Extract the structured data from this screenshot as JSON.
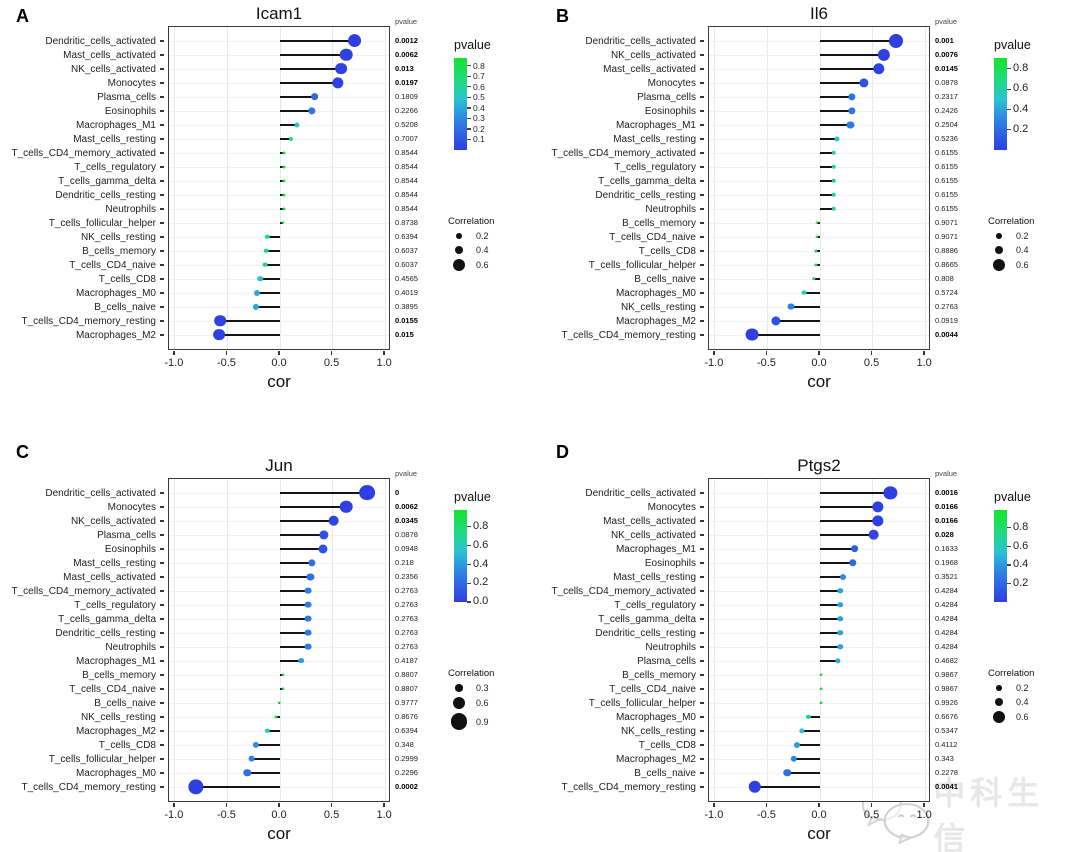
{
  "watermark": {
    "text": "中科生信",
    "icon": "wechat-icon"
  },
  "colors": {
    "stem": "#141414",
    "box_border": "#3a3a3a",
    "gradient_stops": [
      {
        "t": 0.0,
        "rgb": [
          47,
          62,
          224
        ]
      },
      {
        "t": 0.3,
        "rgb": [
          45,
          125,
          230
        ]
      },
      {
        "t": 0.55,
        "rgb": [
          42,
          195,
          210
        ]
      },
      {
        "t": 0.75,
        "rgb": [
          34,
          217,
          130
        ]
      },
      {
        "t": 1.0,
        "rgb": [
          20,
          228,
          45
        ]
      }
    ],
    "gradient_low_p": "blue",
    "gradient_high_p": "green"
  },
  "chart_data": [
    {
      "panel": "A",
      "type": "lollipop",
      "title": "Icam1",
      "xlabel": "cor",
      "xlim": [
        -1.0,
        1.0
      ],
      "xticks": [
        "-1.0",
        "-0.5",
        "0.0",
        "0.5",
        "1.0"
      ],
      "pvalue_col_header": "pvalue",
      "legend": {
        "pvalue_title": "pvalue",
        "pvalue_ticks": [
          0.8,
          0.7,
          0.6,
          0.5,
          0.4,
          0.3,
          0.2,
          0.1
        ],
        "correlation_title": "Correlation",
        "correlation_sizes": [
          0.2,
          0.4,
          0.6
        ]
      },
      "rows": [
        {
          "cell": "Dendritic_cells_activated",
          "cor": 0.71,
          "pvalue": "0.0012",
          "significant": true
        },
        {
          "cell": "Mast_cells_activated",
          "cor": 0.63,
          "pvalue": "0.0062",
          "significant": true
        },
        {
          "cell": "NK_cells_activated",
          "cor": 0.58,
          "pvalue": "0.013",
          "significant": true
        },
        {
          "cell": "Monocytes",
          "cor": 0.55,
          "pvalue": "0.0197",
          "significant": true
        },
        {
          "cell": "Plasma_cells",
          "cor": 0.33,
          "pvalue": "0.1809",
          "significant": false
        },
        {
          "cell": "Eosinophils",
          "cor": 0.3,
          "pvalue": "0.2266",
          "significant": false
        },
        {
          "cell": "Macrophages_M1",
          "cor": 0.16,
          "pvalue": "0.5208",
          "significant": false
        },
        {
          "cell": "Mast_cells_resting",
          "cor": 0.1,
          "pvalue": "0.7007",
          "significant": false
        },
        {
          "cell": "T_cells_CD4_memory_activated",
          "cor": 0.04,
          "pvalue": "0.8544",
          "significant": false
        },
        {
          "cell": "T_cells_regulatory",
          "cor": 0.04,
          "pvalue": "0.8544",
          "significant": false
        },
        {
          "cell": "T_cells_gamma_delta",
          "cor": 0.04,
          "pvalue": "0.8544",
          "significant": false
        },
        {
          "cell": "Dendritic_cells_resting",
          "cor": 0.04,
          "pvalue": "0.8544",
          "significant": false
        },
        {
          "cell": "Neutrophils",
          "cor": 0.04,
          "pvalue": "0.8544",
          "significant": false
        },
        {
          "cell": "T_cells_follicular_helper",
          "cor": 0.03,
          "pvalue": "0.8738",
          "significant": false
        },
        {
          "cell": "NK_cells_resting",
          "cor": -0.12,
          "pvalue": "0.6394",
          "significant": false
        },
        {
          "cell": "B_cells_memory",
          "cor": -0.13,
          "pvalue": "0.6037",
          "significant": false
        },
        {
          "cell": "T_cells_CD4_naive",
          "cor": -0.14,
          "pvalue": "0.6037",
          "significant": false
        },
        {
          "cell": "T_cells_CD8",
          "cor": -0.19,
          "pvalue": "0.4565",
          "significant": false
        },
        {
          "cell": "Macrophages_M0",
          "cor": -0.22,
          "pvalue": "0.4019",
          "significant": false
        },
        {
          "cell": "B_cells_naive",
          "cor": -0.23,
          "pvalue": "0.3895",
          "significant": false
        },
        {
          "cell": "T_cells_CD4_memory_resting",
          "cor": -0.57,
          "pvalue": "0.0155",
          "significant": true
        },
        {
          "cell": "Macrophages_M2",
          "cor": -0.58,
          "pvalue": "0.015",
          "significant": true
        }
      ]
    },
    {
      "panel": "B",
      "type": "lollipop",
      "title": "Il6",
      "xlabel": "cor",
      "xlim": [
        -1.0,
        1.0
      ],
      "xticks": [
        "-1.0",
        "-0.5",
        "0.0",
        "0.5",
        "1.0"
      ],
      "pvalue_col_header": "pvalue",
      "legend": {
        "pvalue_title": "pvalue",
        "pvalue_ticks": [
          0.8,
          0.6,
          0.4,
          0.2
        ],
        "correlation_title": "Correlation",
        "correlation_sizes": [
          0.2,
          0.4,
          0.6
        ]
      },
      "rows": [
        {
          "cell": "Dendritic_cells_activated",
          "cor": 0.72,
          "pvalue": "0.001",
          "significant": true
        },
        {
          "cell": "NK_cells_activated",
          "cor": 0.61,
          "pvalue": "0.0076",
          "significant": true
        },
        {
          "cell": "Mast_cells_activated",
          "cor": 0.56,
          "pvalue": "0.0145",
          "significant": true
        },
        {
          "cell": "Monocytes",
          "cor": 0.42,
          "pvalue": "0.0878",
          "significant": false
        },
        {
          "cell": "Plasma_cells",
          "cor": 0.3,
          "pvalue": "0.2317",
          "significant": false
        },
        {
          "cell": "Eosinophils",
          "cor": 0.3,
          "pvalue": "0.2426",
          "significant": false
        },
        {
          "cell": "Macrophages_M1",
          "cor": 0.29,
          "pvalue": "0.2504",
          "significant": false
        },
        {
          "cell": "Mast_cells_resting",
          "cor": 0.16,
          "pvalue": "0.5236",
          "significant": false
        },
        {
          "cell": "T_cells_CD4_memory_activated",
          "cor": 0.13,
          "pvalue": "0.6155",
          "significant": false
        },
        {
          "cell": "T_cells_regulatory",
          "cor": 0.13,
          "pvalue": "0.6155",
          "significant": false
        },
        {
          "cell": "T_cells_gamma_delta",
          "cor": 0.13,
          "pvalue": "0.6155",
          "significant": false
        },
        {
          "cell": "Dendritic_cells_resting",
          "cor": 0.13,
          "pvalue": "0.6155",
          "significant": false
        },
        {
          "cell": "Neutrophils",
          "cor": 0.13,
          "pvalue": "0.6155",
          "significant": false
        },
        {
          "cell": "B_cells_memory",
          "cor": -0.03,
          "pvalue": "0.9071",
          "significant": false
        },
        {
          "cell": "T_cells_CD4_naive",
          "cor": -0.03,
          "pvalue": "0.9071",
          "significant": false
        },
        {
          "cell": "T_cells_CD8",
          "cor": -0.04,
          "pvalue": "0.8886",
          "significant": false
        },
        {
          "cell": "T_cells_follicular_helper",
          "cor": -0.04,
          "pvalue": "0.8665",
          "significant": false
        },
        {
          "cell": "B_cells_naive",
          "cor": -0.06,
          "pvalue": "0.808",
          "significant": false
        },
        {
          "cell": "Macrophages_M0",
          "cor": -0.15,
          "pvalue": "0.5724",
          "significant": false
        },
        {
          "cell": "NK_cells_resting",
          "cor": -0.28,
          "pvalue": "0.2763",
          "significant": false
        },
        {
          "cell": "Macrophages_M2",
          "cor": -0.42,
          "pvalue": "0.0919",
          "significant": false
        },
        {
          "cell": "T_cells_CD4_memory_resting",
          "cor": -0.65,
          "pvalue": "0.0044",
          "significant": true
        }
      ]
    },
    {
      "panel": "C",
      "type": "lollipop",
      "title": "Jun",
      "xlabel": "cor",
      "xlim": [
        -1.0,
        1.0
      ],
      "xticks": [
        "-1.0",
        "-0.5",
        "0.0",
        "0.5",
        "1.0"
      ],
      "pvalue_col_header": "pvalue",
      "legend": {
        "pvalue_title": "pvalue",
        "pvalue_ticks": [
          0.8,
          0.6,
          0.4,
          0.2,
          0.0
        ],
        "correlation_title": "Correlation",
        "correlation_sizes": [
          0.3,
          0.6,
          0.9
        ]
      },
      "rows": [
        {
          "cell": "Dendritic_cells_activated",
          "cor": 0.83,
          "pvalue": "0",
          "significant": true
        },
        {
          "cell": "Monocytes",
          "cor": 0.63,
          "pvalue": "0.0062",
          "significant": true
        },
        {
          "cell": "NK_cells_activated",
          "cor": 0.51,
          "pvalue": "0.0345",
          "significant": true
        },
        {
          "cell": "Plasma_cells",
          "cor": 0.42,
          "pvalue": "0.0878",
          "significant": false
        },
        {
          "cell": "Eosinophils",
          "cor": 0.41,
          "pvalue": "0.0948",
          "significant": false
        },
        {
          "cell": "Mast_cells_resting",
          "cor": 0.3,
          "pvalue": "0.218",
          "significant": false
        },
        {
          "cell": "Mast_cells_activated",
          "cor": 0.29,
          "pvalue": "0.2356",
          "significant": false
        },
        {
          "cell": "T_cells_CD4_memory_activated",
          "cor": 0.27,
          "pvalue": "0.2763",
          "significant": false
        },
        {
          "cell": "T_cells_regulatory",
          "cor": 0.27,
          "pvalue": "0.2763",
          "significant": false
        },
        {
          "cell": "T_cells_gamma_delta",
          "cor": 0.27,
          "pvalue": "0.2763",
          "significant": false
        },
        {
          "cell": "Dendritic_cells_resting",
          "cor": 0.27,
          "pvalue": "0.2763",
          "significant": false
        },
        {
          "cell": "Neutrophils",
          "cor": 0.27,
          "pvalue": "0.2763",
          "significant": false
        },
        {
          "cell": "Macrophages_M1",
          "cor": 0.2,
          "pvalue": "0.4187",
          "significant": false
        },
        {
          "cell": "B_cells_memory",
          "cor": 0.03,
          "pvalue": "0.8807",
          "significant": false
        },
        {
          "cell": "T_cells_CD4_naive",
          "cor": 0.03,
          "pvalue": "0.8807",
          "significant": false
        },
        {
          "cell": "B_cells_naive",
          "cor": -0.01,
          "pvalue": "0.9777",
          "significant": false
        },
        {
          "cell": "NK_cells_resting",
          "cor": -0.04,
          "pvalue": "0.8676",
          "significant": false
        },
        {
          "cell": "Macrophages_M2",
          "cor": -0.12,
          "pvalue": "0.6394",
          "significant": false
        },
        {
          "cell": "T_cells_CD8",
          "cor": -0.23,
          "pvalue": "0.348",
          "significant": false
        },
        {
          "cell": "T_cells_follicular_helper",
          "cor": -0.27,
          "pvalue": "0.2999",
          "significant": false
        },
        {
          "cell": "Macrophages_M0",
          "cor": -0.31,
          "pvalue": "0.2296",
          "significant": false
        },
        {
          "cell": "T_cells_CD4_memory_resting",
          "cor": -0.8,
          "pvalue": "0.0002",
          "significant": true
        }
      ]
    },
    {
      "panel": "D",
      "type": "lollipop",
      "title": "Ptgs2",
      "xlabel": "cor",
      "xlim": [
        -1.0,
        1.0
      ],
      "xticks": [
        "-1.0",
        "-0.5",
        "0.0",
        "0.5",
        "1.0"
      ],
      "pvalue_col_header": "pvalue",
      "legend": {
        "pvalue_title": "pvalue",
        "pvalue_ticks": [
          0.8,
          0.6,
          0.4,
          0.2
        ],
        "correlation_title": "Correlation",
        "correlation_sizes": [
          0.2,
          0.4,
          0.6
        ]
      },
      "rows": [
        {
          "cell": "Dendritic_cells_activated",
          "cor": 0.67,
          "pvalue": "0.0016",
          "significant": true
        },
        {
          "cell": "Monocytes",
          "cor": 0.55,
          "pvalue": "0.0166",
          "significant": true
        },
        {
          "cell": "Mast_cells_activated",
          "cor": 0.55,
          "pvalue": "0.0166",
          "significant": true
        },
        {
          "cell": "NK_cells_activated",
          "cor": 0.51,
          "pvalue": "0.028",
          "significant": true
        },
        {
          "cell": "Macrophages_M1",
          "cor": 0.33,
          "pvalue": "0.1633",
          "significant": false
        },
        {
          "cell": "Eosinophils",
          "cor": 0.31,
          "pvalue": "0.1968",
          "significant": false
        },
        {
          "cell": "Mast_cells_resting",
          "cor": 0.22,
          "pvalue": "0.3521",
          "significant": false
        },
        {
          "cell": "T_cells_CD4_memory_activated",
          "cor": 0.19,
          "pvalue": "0.4284",
          "significant": false
        },
        {
          "cell": "T_cells_regulatory",
          "cor": 0.19,
          "pvalue": "0.4284",
          "significant": false
        },
        {
          "cell": "T_cells_gamma_delta",
          "cor": 0.19,
          "pvalue": "0.4284",
          "significant": false
        },
        {
          "cell": "Dendritic_cells_resting",
          "cor": 0.19,
          "pvalue": "0.4284",
          "significant": false
        },
        {
          "cell": "Neutrophils",
          "cor": 0.19,
          "pvalue": "0.4284",
          "significant": false
        },
        {
          "cell": "Plasma_cells",
          "cor": 0.17,
          "pvalue": "0.4682",
          "significant": false
        },
        {
          "cell": "B_cells_memory",
          "cor": 0.01,
          "pvalue": "0.9867",
          "significant": false
        },
        {
          "cell": "T_cells_CD4_naive",
          "cor": 0.01,
          "pvalue": "0.9867",
          "significant": false
        },
        {
          "cell": "T_cells_follicular_helper",
          "cor": 0.01,
          "pvalue": "0.9926",
          "significant": false
        },
        {
          "cell": "Macrophages_M0",
          "cor": -0.11,
          "pvalue": "0.6676",
          "significant": false
        },
        {
          "cell": "NK_cells_resting",
          "cor": -0.17,
          "pvalue": "0.5347",
          "significant": false
        },
        {
          "cell": "T_cells_CD8",
          "cor": -0.22,
          "pvalue": "0.4112",
          "significant": false
        },
        {
          "cell": "Macrophages_M2",
          "cor": -0.25,
          "pvalue": "0.343",
          "significant": false
        },
        {
          "cell": "B_cells_naive",
          "cor": -0.31,
          "pvalue": "0.2278",
          "significant": false
        },
        {
          "cell": "T_cells_CD4_memory_resting",
          "cor": -0.62,
          "pvalue": "0.0041",
          "significant": true
        }
      ]
    }
  ]
}
